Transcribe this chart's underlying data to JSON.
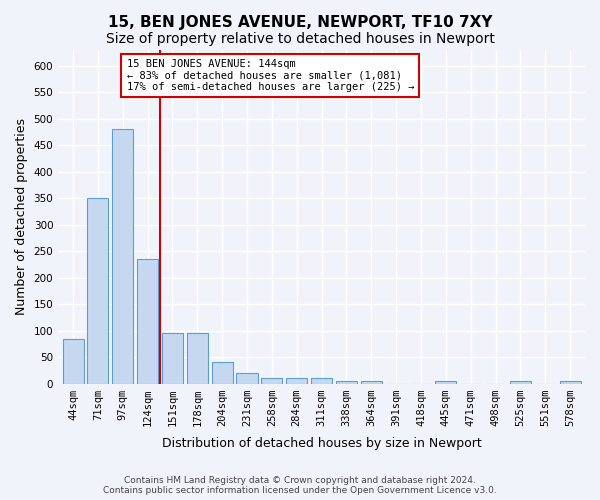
{
  "title": "15, BEN JONES AVENUE, NEWPORT, TF10 7XY",
  "subtitle": "Size of property relative to detached houses in Newport",
  "xlabel": "Distribution of detached houses by size in Newport",
  "ylabel": "Number of detached properties",
  "categories": [
    "44sqm",
    "71sqm",
    "97sqm",
    "124sqm",
    "151sqm",
    "178sqm",
    "204sqm",
    "231sqm",
    "258sqm",
    "284sqm",
    "311sqm",
    "338sqm",
    "364sqm",
    "391sqm",
    "418sqm",
    "445sqm",
    "471sqm",
    "498sqm",
    "525sqm",
    "551sqm",
    "578sqm"
  ],
  "values": [
    85,
    350,
    480,
    235,
    95,
    95,
    40,
    20,
    10,
    10,
    10,
    5,
    5,
    0,
    0,
    5,
    0,
    0,
    5,
    0,
    5
  ],
  "bar_color": "#c5d8f0",
  "bar_edge_color": "#5a9fd4",
  "highlight_bar_index": 3,
  "highlight_line_color": "#cc0000",
  "ylim": [
    0,
    630
  ],
  "yticks": [
    0,
    50,
    100,
    150,
    200,
    250,
    300,
    350,
    400,
    450,
    500,
    550,
    600
  ],
  "annotation_text": "15 BEN JONES AVENUE: 144sqm\n← 83% of detached houses are smaller (1,081)\n17% of semi-detached houses are larger (225) →",
  "annotation_box_color": "#ffffff",
  "annotation_box_edge_color": "#cc0000",
  "footer_text": "Contains HM Land Registry data © Crown copyright and database right 2024.\nContains public sector information licensed under the Open Government Licence v3.0.",
  "background_color": "#f0f4fa",
  "grid_color": "#ffffff",
  "title_fontsize": 11,
  "subtitle_fontsize": 10,
  "tick_fontsize": 7.5
}
